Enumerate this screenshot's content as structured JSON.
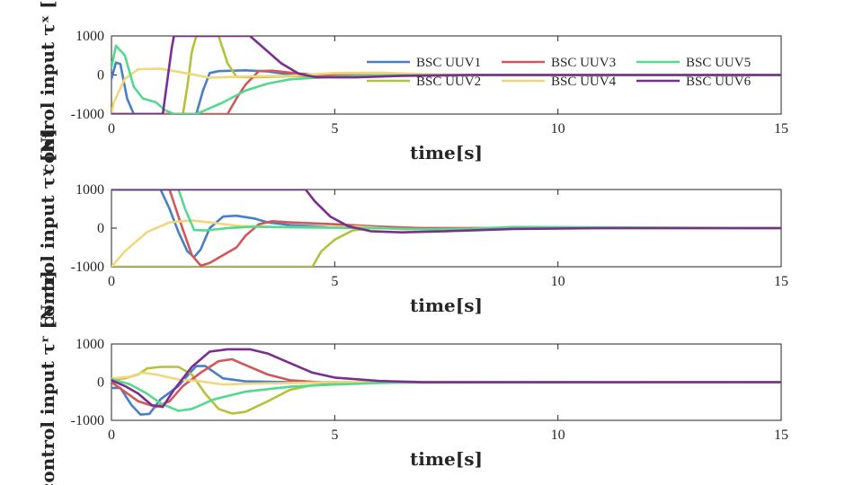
{
  "chart_data": [
    {
      "type": "line",
      "ylabel": "control input τˣ [N]",
      "xlabel": "time[s]",
      "xlim": [
        0,
        15
      ],
      "ylim": [
        -1000,
        1000
      ],
      "xticks": [
        0,
        5,
        10,
        15
      ],
      "yticks": [
        -1000,
        0,
        1000
      ],
      "legend": {
        "placement": "top-right",
        "columns": 3
      },
      "series": [
        {
          "name": "BSC UUV1",
          "color": "#4a7fc1",
          "points": [
            [
              0,
              -100
            ],
            [
              0.1,
              320
            ],
            [
              0.2,
              280
            ],
            [
              0.35,
              -600
            ],
            [
              0.5,
              -1000
            ],
            [
              1.9,
              -1000
            ],
            [
              2.05,
              -400
            ],
            [
              2.2,
              50
            ],
            [
              2.4,
              100
            ],
            [
              3,
              120
            ],
            [
              3.5,
              90
            ],
            [
              4,
              10
            ],
            [
              4.5,
              -40
            ],
            [
              5,
              -50
            ],
            [
              6,
              -25
            ],
            [
              8,
              0
            ],
            [
              15,
              0
            ]
          ]
        },
        {
          "name": "BSC UUV2",
          "color": "#b4c23a",
          "points": [
            [
              0,
              -1000
            ],
            [
              1.6,
              -1000
            ],
            [
              1.7,
              -300
            ],
            [
              1.8,
              600
            ],
            [
              1.9,
              1000
            ],
            [
              2.4,
              1000
            ],
            [
              2.6,
              300
            ],
            [
              2.8,
              -50
            ],
            [
              3.2,
              -60
            ],
            [
              4,
              -30
            ],
            [
              5,
              -20
            ],
            [
              6,
              -10
            ],
            [
              8,
              0
            ],
            [
              15,
              0
            ]
          ]
        },
        {
          "name": "BSC UUV3",
          "color": "#d0585a",
          "points": [
            [
              0,
              -1000
            ],
            [
              2.6,
              -1000
            ],
            [
              2.8,
              -600
            ],
            [
              3,
              -250
            ],
            [
              3.3,
              100
            ],
            [
              3.6,
              110
            ],
            [
              4,
              60
            ],
            [
              4.5,
              10
            ],
            [
              5,
              -10
            ],
            [
              6,
              -10
            ],
            [
              8,
              0
            ],
            [
              15,
              0
            ]
          ]
        },
        {
          "name": "BSC UUV4",
          "color": "#f0d77c",
          "points": [
            [
              0,
              -1000
            ],
            [
              0.05,
              -700
            ],
            [
              0.3,
              -100
            ],
            [
              0.6,
              150
            ],
            [
              1.1,
              160
            ],
            [
              1.6,
              60
            ],
            [
              2.2,
              -70
            ],
            [
              3,
              -40
            ],
            [
              4,
              -20
            ],
            [
              5,
              50
            ],
            [
              6,
              60
            ],
            [
              7,
              20
            ],
            [
              8,
              0
            ],
            [
              15,
              0
            ]
          ]
        },
        {
          "name": "BSC UUV5",
          "color": "#55d98f",
          "points": [
            [
              0,
              200
            ],
            [
              0.1,
              750
            ],
            [
              0.3,
              500
            ],
            [
              0.5,
              -300
            ],
            [
              0.7,
              -600
            ],
            [
              1,
              -700
            ],
            [
              1.2,
              -900
            ],
            [
              1.4,
              -1000
            ],
            [
              1.9,
              -1000
            ],
            [
              2.1,
              -900
            ],
            [
              2.5,
              -700
            ],
            [
              3,
              -400
            ],
            [
              3.5,
              -220
            ],
            [
              4,
              -110
            ],
            [
              5,
              -40
            ],
            [
              6,
              -10
            ],
            [
              8,
              0
            ],
            [
              15,
              0
            ]
          ]
        },
        {
          "name": "BSC UUV6",
          "color": "#7a2f8e",
          "points": [
            [
              0,
              -1000
            ],
            [
              1.15,
              -1000
            ],
            [
              1.35,
              700
            ],
            [
              1.4,
              1000
            ],
            [
              3.1,
              1000
            ],
            [
              3.4,
              700
            ],
            [
              3.8,
              300
            ],
            [
              4.2,
              30
            ],
            [
              4.6,
              -60
            ],
            [
              5.5,
              -60
            ],
            [
              6.5,
              -20
            ],
            [
              8,
              0
            ],
            [
              15,
              0
            ]
          ]
        }
      ]
    },
    {
      "type": "line",
      "ylabel": "control input τʸ [N]",
      "xlabel": "time[s]",
      "xlim": [
        0,
        15
      ],
      "ylim": [
        -1000,
        1000
      ],
      "xticks": [
        0,
        5,
        10,
        15
      ],
      "yticks": [
        -1000,
        0,
        1000
      ],
      "series": [
        {
          "name": "BSC UUV1",
          "color": "#4a7fc1",
          "points": [
            [
              0,
              1000
            ],
            [
              1.1,
              1000
            ],
            [
              1.3,
              500
            ],
            [
              1.5,
              -100
            ],
            [
              1.7,
              -600
            ],
            [
              1.85,
              -750
            ],
            [
              2,
              -550
            ],
            [
              2.2,
              0
            ],
            [
              2.5,
              300
            ],
            [
              2.8,
              320
            ],
            [
              3.2,
              250
            ],
            [
              3.5,
              150
            ],
            [
              4,
              80
            ],
            [
              5,
              20
            ],
            [
              6,
              0
            ],
            [
              15,
              0
            ]
          ]
        },
        {
          "name": "BSC UUV2",
          "color": "#b4c23a",
          "points": [
            [
              0,
              -1000
            ],
            [
              4.5,
              -1000
            ],
            [
              4.7,
              -600
            ],
            [
              5,
              -300
            ],
            [
              5.4,
              -60
            ],
            [
              6,
              20
            ],
            [
              7,
              -20
            ],
            [
              8,
              0
            ],
            [
              15,
              0
            ]
          ]
        },
        {
          "name": "BSC UUV3",
          "color": "#d0585a",
          "points": [
            [
              0,
              1000
            ],
            [
              1.3,
              1000
            ],
            [
              1.5,
              300
            ],
            [
              1.8,
              -700
            ],
            [
              2,
              -970
            ],
            [
              2.2,
              -900
            ],
            [
              2.5,
              -700
            ],
            [
              2.8,
              -500
            ],
            [
              3,
              -200
            ],
            [
              3.3,
              100
            ],
            [
              3.6,
              180
            ],
            [
              4,
              150
            ],
            [
              5,
              100
            ],
            [
              6,
              40
            ],
            [
              7,
              0
            ],
            [
              15,
              0
            ]
          ]
        },
        {
          "name": "BSC UUV4",
          "color": "#f0d77c",
          "points": [
            [
              0,
              -1000
            ],
            [
              0.3,
              -600
            ],
            [
              0.8,
              -100
            ],
            [
              1.3,
              150
            ],
            [
              1.8,
              200
            ],
            [
              2.2,
              150
            ],
            [
              2.8,
              60
            ],
            [
              3.5,
              30
            ],
            [
              4.5,
              20
            ],
            [
              5.5,
              40
            ],
            [
              6.5,
              -30
            ],
            [
              7.5,
              -30
            ],
            [
              9,
              0
            ],
            [
              15,
              0
            ]
          ]
        },
        {
          "name": "BSC UUV5",
          "color": "#55d98f",
          "points": [
            [
              0,
              1000
            ],
            [
              1.5,
              1000
            ],
            [
              1.65,
              500
            ],
            [
              1.85,
              -50
            ],
            [
              2.1,
              -60
            ],
            [
              2.6,
              0
            ],
            [
              3.2,
              40
            ],
            [
              4,
              20
            ],
            [
              5,
              10
            ],
            [
              6,
              0
            ],
            [
              7,
              -30
            ],
            [
              8,
              -20
            ],
            [
              9,
              30
            ],
            [
              15,
              0
            ]
          ]
        },
        {
          "name": "BSC UUV6",
          "color": "#7a2f8e",
          "points": [
            [
              0,
              1000
            ],
            [
              4.35,
              1000
            ],
            [
              4.55,
              700
            ],
            [
              4.9,
              300
            ],
            [
              5.3,
              50
            ],
            [
              5.8,
              -80
            ],
            [
              6.5,
              -110
            ],
            [
              7.5,
              -80
            ],
            [
              9,
              -20
            ],
            [
              11,
              0
            ],
            [
              15,
              0
            ]
          ]
        }
      ]
    },
    {
      "type": "line",
      "ylabel": "control input τʳ [N·m]",
      "xlabel": "time[s]",
      "xlim": [
        0,
        15
      ],
      "ylim": [
        -1000,
        1000
      ],
      "xticks": [
        0,
        5,
        10,
        15
      ],
      "yticks": [
        -1000,
        0,
        1000
      ],
      "series": [
        {
          "name": "BSC UUV1",
          "color": "#4a7fc1",
          "points": [
            [
              0,
              -150
            ],
            [
              0.2,
              -150
            ],
            [
              0.45,
              -600
            ],
            [
              0.65,
              -850
            ],
            [
              0.85,
              -830
            ],
            [
              1.1,
              -450
            ],
            [
              1.5,
              -100
            ],
            [
              1.8,
              300
            ],
            [
              1.9,
              420
            ],
            [
              2.1,
              420
            ],
            [
              2.5,
              100
            ],
            [
              3,
              20
            ],
            [
              4,
              0
            ],
            [
              15,
              0
            ]
          ]
        },
        {
          "name": "BSC UUV2",
          "color": "#b4c23a",
          "points": [
            [
              0,
              80
            ],
            [
              0.3,
              100
            ],
            [
              0.6,
              200
            ],
            [
              0.8,
              360
            ],
            [
              1.1,
              400
            ],
            [
              1.5,
              400
            ],
            [
              1.8,
              200
            ],
            [
              2.1,
              -300
            ],
            [
              2.4,
              -700
            ],
            [
              2.7,
              -820
            ],
            [
              3,
              -780
            ],
            [
              3.5,
              -500
            ],
            [
              4,
              -200
            ],
            [
              4.5,
              -80
            ],
            [
              5,
              -40
            ],
            [
              6,
              0
            ],
            [
              15,
              0
            ]
          ]
        },
        {
          "name": "BSC UUV3",
          "color": "#d0585a",
          "points": [
            [
              0,
              0
            ],
            [
              0.3,
              -250
            ],
            [
              0.6,
              -500
            ],
            [
              1,
              -650
            ],
            [
              1.3,
              -500
            ],
            [
              1.6,
              -100
            ],
            [
              2,
              250
            ],
            [
              2.4,
              550
            ],
            [
              2.7,
              600
            ],
            [
              3,
              450
            ],
            [
              3.5,
              200
            ],
            [
              4,
              50
            ],
            [
              5,
              -30
            ],
            [
              6,
              -10
            ],
            [
              15,
              0
            ]
          ]
        },
        {
          "name": "BSC UUV4",
          "color": "#f0d77c",
          "points": [
            [
              0,
              100
            ],
            [
              0.4,
              140
            ],
            [
              0.7,
              250
            ],
            [
              1,
              200
            ],
            [
              1.5,
              70
            ],
            [
              2,
              20
            ],
            [
              2.5,
              -60
            ],
            [
              3,
              -40
            ],
            [
              4,
              -20
            ],
            [
              5,
              0
            ],
            [
              6,
              10
            ],
            [
              15,
              0
            ]
          ]
        },
        {
          "name": "BSC UUV5",
          "color": "#55d98f",
          "points": [
            [
              0,
              80
            ],
            [
              0.4,
              -50
            ],
            [
              0.8,
              -300
            ],
            [
              1.1,
              -550
            ],
            [
              1.5,
              -750
            ],
            [
              1.8,
              -700
            ],
            [
              2.3,
              -450
            ],
            [
              3,
              -250
            ],
            [
              4,
              -120
            ],
            [
              5,
              -60
            ],
            [
              6,
              -20
            ],
            [
              7,
              0
            ],
            [
              15,
              0
            ]
          ]
        },
        {
          "name": "BSC UUV6",
          "color": "#7a2f8e",
          "points": [
            [
              0,
              50
            ],
            [
              0.3,
              -100
            ],
            [
              0.6,
              -300
            ],
            [
              0.9,
              -600
            ],
            [
              1.15,
              -650
            ],
            [
              1.4,
              -200
            ],
            [
              1.8,
              400
            ],
            [
              2.2,
              800
            ],
            [
              2.6,
              860
            ],
            [
              3.1,
              860
            ],
            [
              3.5,
              750
            ],
            [
              4,
              500
            ],
            [
              4.5,
              250
            ],
            [
              5,
              120
            ],
            [
              6,
              30
            ],
            [
              7,
              0
            ],
            [
              15,
              0
            ]
          ]
        }
      ]
    }
  ]
}
